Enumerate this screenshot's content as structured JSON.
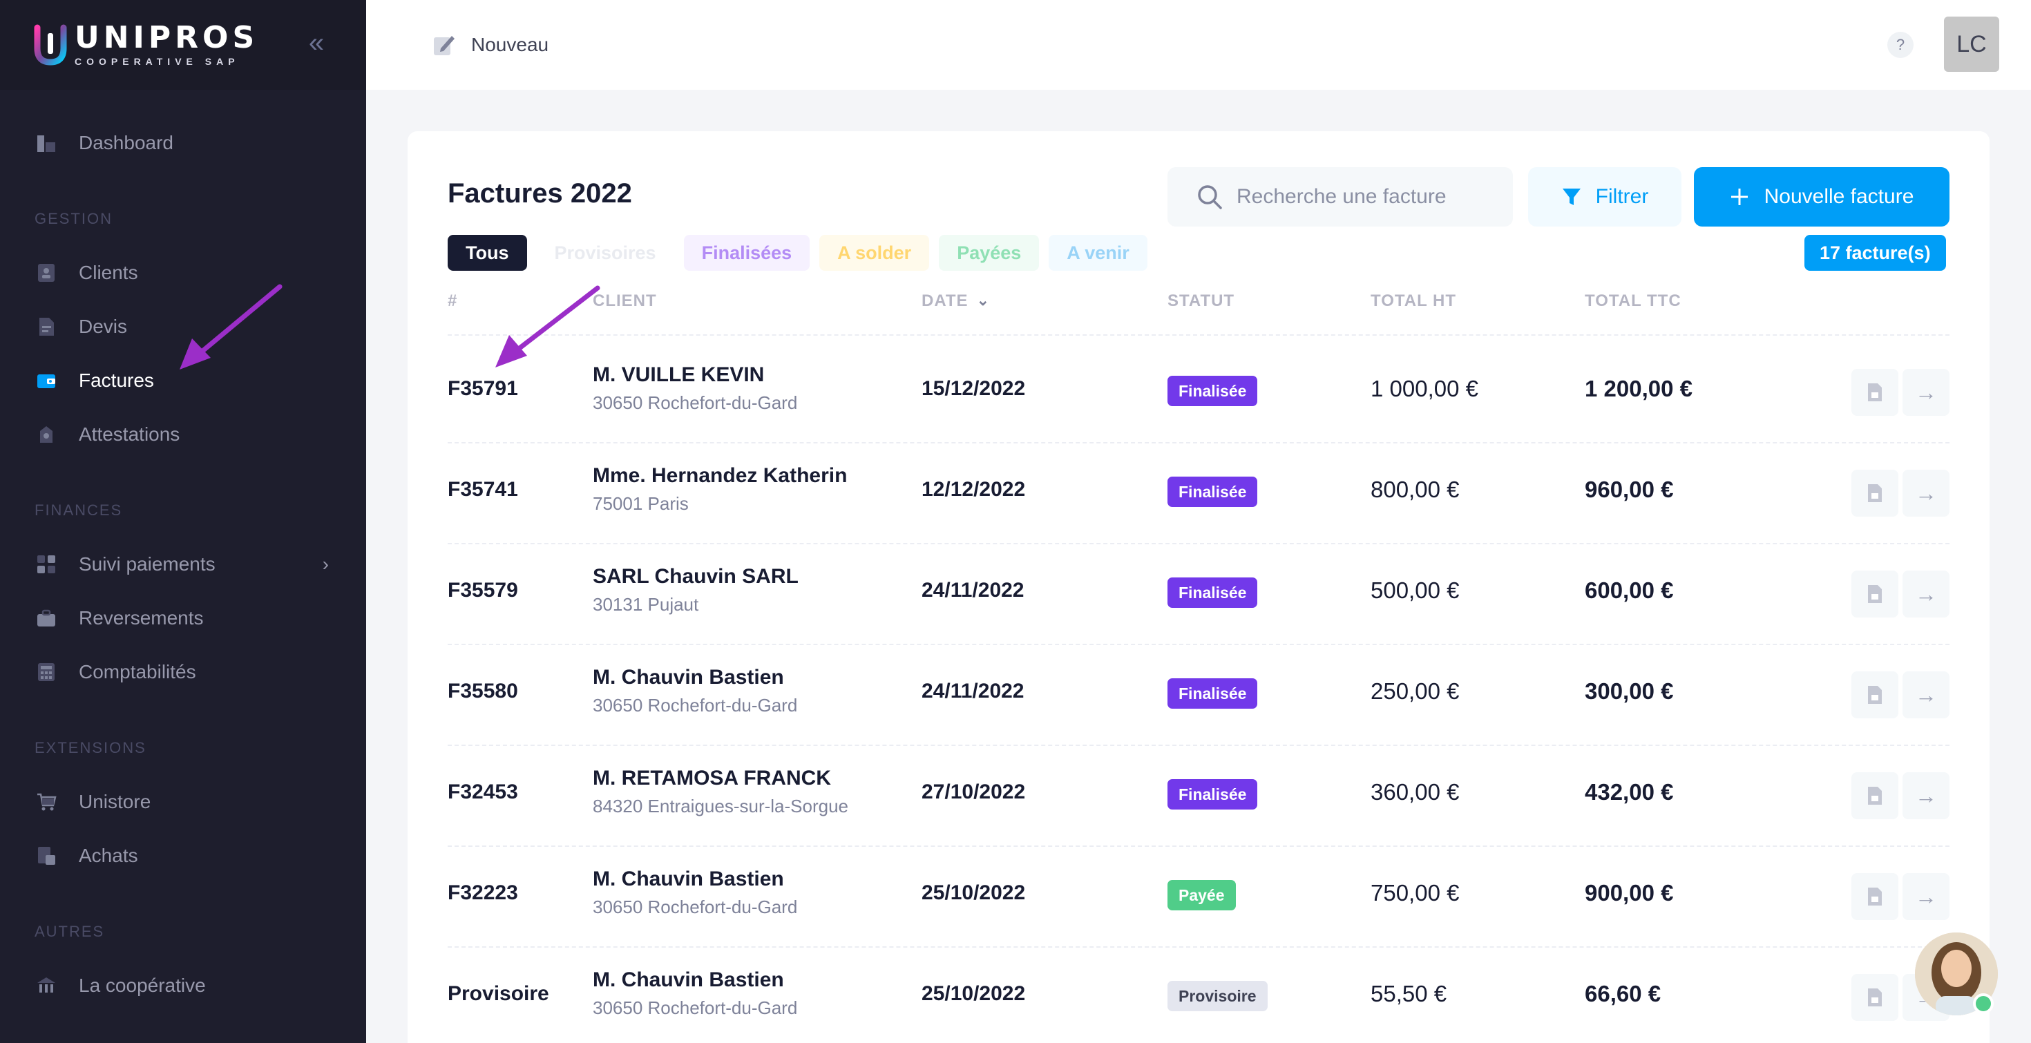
{
  "brand": {
    "name": "UNIPROS",
    "subtitle": "COOPERATIVE SAP"
  },
  "sidebar": {
    "dashboard": "Dashboard",
    "sections": [
      {
        "title": "GESTION",
        "items": [
          {
            "label": "Clients"
          },
          {
            "label": "Devis"
          },
          {
            "label": "Factures"
          },
          {
            "label": "Attestations"
          }
        ]
      },
      {
        "title": "FINANCES",
        "items": [
          {
            "label": "Suivi paiements"
          },
          {
            "label": "Reversements"
          },
          {
            "label": "Comptabilités"
          }
        ]
      },
      {
        "title": "EXTENSIONS",
        "items": [
          {
            "label": "Unistore"
          },
          {
            "label": "Achats"
          }
        ]
      },
      {
        "title": "AUTRES",
        "items": [
          {
            "label": "La coopérative"
          }
        ]
      }
    ]
  },
  "header": {
    "nouveau_label": "Nouveau",
    "help": "?",
    "user_initials": "LC"
  },
  "invoices": {
    "title": "Factures 2022",
    "search_placeholder": "Recherche une facture",
    "filter_label": "Filtrer",
    "new_label": "Nouvelle facture",
    "count_label": "17 facture(s)",
    "tabs": [
      "Tous",
      "Provisoires",
      "Finalisées",
      "A solder",
      "Payées",
      "A venir"
    ],
    "columns": {
      "num": "#",
      "client": "CLIENT",
      "date": "DATE",
      "status": "STATUT",
      "total_ht": "TOTAL HT",
      "total_ttc": "TOTAL TTC"
    },
    "rows": [
      {
        "num": "F35791",
        "client": "M. VUILLE KEVIN",
        "city": "30650 Rochefort-du-Gard",
        "date": "15/12/2022",
        "status": "Finalisée",
        "total_ht": "1 000,00 €",
        "total_ttc": "1 200,00 €"
      },
      {
        "num": "F35741",
        "client": "Mme. Hernandez Katherin",
        "city": "75001 Paris",
        "date": "12/12/2022",
        "status": "Finalisée",
        "total_ht": "800,00 €",
        "total_ttc": "960,00 €"
      },
      {
        "num": "F35579",
        "client": "SARL Chauvin SARL",
        "city": "30131 Pujaut",
        "date": "24/11/2022",
        "status": "Finalisée",
        "total_ht": "500,00 €",
        "total_ttc": "600,00 €"
      },
      {
        "num": "F35580",
        "client": "M. Chauvin Bastien",
        "city": "30650 Rochefort-du-Gard",
        "date": "24/11/2022",
        "status": "Finalisée",
        "total_ht": "250,00 €",
        "total_ttc": "300,00 €"
      },
      {
        "num": "F32453",
        "client": "M. RETAMOSA FRANCK",
        "city": "84320 Entraigues-sur-la-Sorgue",
        "date": "27/10/2022",
        "status": "Finalisée",
        "total_ht": "360,00 €",
        "total_ttc": "432,00 €"
      },
      {
        "num": "F32223",
        "client": "M. Chauvin Bastien",
        "city": "30650 Rochefort-du-Gard",
        "date": "25/10/2022",
        "status": "Payée",
        "total_ht": "750,00 €",
        "total_ttc": "900,00 €"
      },
      {
        "num": "Provisoire",
        "client": "M. Chauvin Bastien",
        "city": "30650 Rochefort-du-Gard",
        "date": "25/10/2022",
        "status": "Provisoire",
        "total_ht": "55,50 €",
        "total_ttc": "66,60 €"
      }
    ]
  },
  "colors": {
    "accent": "#009ef7",
    "sidebar_bg": "#1e1e2d",
    "finalisee": "#7239ea",
    "payee": "#50cd89",
    "annotation": "#9b2ec8"
  }
}
